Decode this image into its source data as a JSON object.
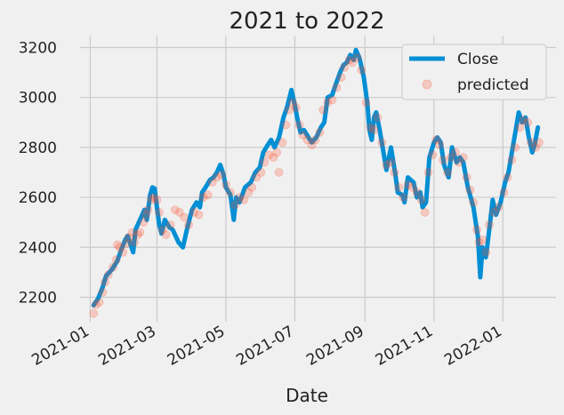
{
  "chart_data": {
    "type": "line",
    "title": "2021 to 2022",
    "xlabel": "Date",
    "ylabel": "",
    "x_ticks": [
      "2021-01",
      "2021-03",
      "2021-05",
      "2021-07",
      "2021-09",
      "2021-11",
      "2022-01"
    ],
    "y_ticks": [
      "2200",
      "2400",
      "2600",
      "2800",
      "3000",
      "3200"
    ],
    "xlim": [
      "2020-12-23",
      "2022-02-17"
    ],
    "ylim": [
      2102,
      3248
    ],
    "grid": true,
    "legend_position": "top-right",
    "series": [
      {
        "name": "Close",
        "kind": "line",
        "color": "#008fd5",
        "points": [
          [
            "2021-01-04",
            2168
          ],
          [
            "2021-01-08",
            2195
          ],
          [
            "2021-01-12",
            2240
          ],
          [
            "2021-01-15",
            2285
          ],
          [
            "2021-01-20",
            2310
          ],
          [
            "2021-01-25",
            2345
          ],
          [
            "2021-01-28",
            2385
          ],
          [
            "2021-02-01",
            2430
          ],
          [
            "2021-02-03",
            2445
          ],
          [
            "2021-02-05",
            2420
          ],
          [
            "2021-02-08",
            2380
          ],
          [
            "2021-02-10",
            2470
          ],
          [
            "2021-02-12",
            2490
          ],
          [
            "2021-02-16",
            2530
          ],
          [
            "2021-02-18",
            2550
          ],
          [
            "2021-02-20",
            2510
          ],
          [
            "2021-02-23",
            2610
          ],
          [
            "2021-02-25",
            2640
          ],
          [
            "2021-02-27",
            2635
          ],
          [
            "2021-03-01",
            2560
          ],
          [
            "2021-03-03",
            2490
          ],
          [
            "2021-03-05",
            2455
          ],
          [
            "2021-03-08",
            2510
          ],
          [
            "2021-03-12",
            2480
          ],
          [
            "2021-03-15",
            2470
          ],
          [
            "2021-03-20",
            2420
          ],
          [
            "2021-03-24",
            2400
          ],
          [
            "2021-03-28",
            2480
          ],
          [
            "2021-04-01",
            2550
          ],
          [
            "2021-04-05",
            2580
          ],
          [
            "2021-04-08",
            2560
          ],
          [
            "2021-04-10",
            2620
          ],
          [
            "2021-04-13",
            2640
          ],
          [
            "2021-04-17",
            2670
          ],
          [
            "2021-04-20",
            2680
          ],
          [
            "2021-04-23",
            2700
          ],
          [
            "2021-04-26",
            2730
          ],
          [
            "2021-04-29",
            2690
          ],
          [
            "2021-05-01",
            2640
          ],
          [
            "2021-05-05",
            2610
          ],
          [
            "2021-05-08",
            2510
          ],
          [
            "2021-05-10",
            2600
          ],
          [
            "2021-05-13",
            2580
          ],
          [
            "2021-05-18",
            2640
          ],
          [
            "2021-05-23",
            2660
          ],
          [
            "2021-05-27",
            2700
          ],
          [
            "2021-05-31",
            2720
          ],
          [
            "2021-06-03",
            2780
          ],
          [
            "2021-06-07",
            2810
          ],
          [
            "2021-06-10",
            2830
          ],
          [
            "2021-06-13",
            2800
          ],
          [
            "2021-06-17",
            2840
          ],
          [
            "2021-06-21",
            2920
          ],
          [
            "2021-06-24",
            2960
          ],
          [
            "2021-06-28",
            3030
          ],
          [
            "2021-07-01",
            2970
          ],
          [
            "2021-07-03",
            2920
          ],
          [
            "2021-07-06",
            2860
          ],
          [
            "2021-07-09",
            2870
          ],
          [
            "2021-07-13",
            2840
          ],
          [
            "2021-07-16",
            2820
          ],
          [
            "2021-07-20",
            2840
          ],
          [
            "2021-07-24",
            2880
          ],
          [
            "2021-07-27",
            2900
          ],
          [
            "2021-07-30",
            3000
          ],
          [
            "2021-08-03",
            3010
          ],
          [
            "2021-08-06",
            3050
          ],
          [
            "2021-08-10",
            3100
          ],
          [
            "2021-08-13",
            3130
          ],
          [
            "2021-08-16",
            3140
          ],
          [
            "2021-08-19",
            3170
          ],
          [
            "2021-08-22",
            3150
          ],
          [
            "2021-08-24",
            3190
          ],
          [
            "2021-08-27",
            3160
          ],
          [
            "2021-08-31",
            3080
          ],
          [
            "2021-09-03",
            2980
          ],
          [
            "2021-09-05",
            2870
          ],
          [
            "2021-09-07",
            2830
          ],
          [
            "2021-09-09",
            2920
          ],
          [
            "2021-09-11",
            2940
          ],
          [
            "2021-09-14",
            2870
          ],
          [
            "2021-09-17",
            2790
          ],
          [
            "2021-09-20",
            2710
          ],
          [
            "2021-09-24",
            2800
          ],
          [
            "2021-09-28",
            2690
          ],
          [
            "2021-09-30",
            2620
          ],
          [
            "2021-10-04",
            2610
          ],
          [
            "2021-10-06",
            2580
          ],
          [
            "2021-10-09",
            2680
          ],
          [
            "2021-10-14",
            2660
          ],
          [
            "2021-10-17",
            2600
          ],
          [
            "2021-10-20",
            2620
          ],
          [
            "2021-10-22",
            2560
          ],
          [
            "2021-10-25",
            2580
          ],
          [
            "2021-10-28",
            2760
          ],
          [
            "2021-11-01",
            2820
          ],
          [
            "2021-11-04",
            2840
          ],
          [
            "2021-11-07",
            2820
          ],
          [
            "2021-11-10",
            2730
          ],
          [
            "2021-11-14",
            2680
          ],
          [
            "2021-11-17",
            2800
          ],
          [
            "2021-11-21",
            2740
          ],
          [
            "2021-11-24",
            2760
          ],
          [
            "2021-11-27",
            2740
          ],
          [
            "2021-12-01",
            2640
          ],
          [
            "2021-12-03",
            2610
          ],
          [
            "2021-12-06",
            2560
          ],
          [
            "2021-12-08",
            2500
          ],
          [
            "2021-12-10",
            2440
          ],
          [
            "2021-12-12",
            2280
          ],
          [
            "2021-12-14",
            2400
          ],
          [
            "2021-12-17",
            2360
          ],
          [
            "2021-12-21",
            2510
          ],
          [
            "2021-12-23",
            2590
          ],
          [
            "2021-12-26",
            2530
          ],
          [
            "2021-12-30",
            2580
          ],
          [
            "2022-01-03",
            2660
          ],
          [
            "2022-01-06",
            2700
          ],
          [
            "2022-01-09",
            2780
          ],
          [
            "2022-01-12",
            2860
          ],
          [
            "2022-01-15",
            2940
          ],
          [
            "2022-01-18",
            2900
          ],
          [
            "2022-01-21",
            2920
          ],
          [
            "2022-01-24",
            2840
          ],
          [
            "2022-01-27",
            2780
          ],
          [
            "2022-01-29",
            2810
          ],
          [
            "2022-02-01",
            2880
          ]
        ]
      },
      {
        "name": "predicted",
        "kind": "scatter",
        "color": "#fc4f30",
        "points": [
          [
            "2021-01-04",
            2135
          ],
          [
            "2021-01-06",
            2170
          ],
          [
            "2021-01-09",
            2180
          ],
          [
            "2021-01-12",
            2220
          ],
          [
            "2021-01-14",
            2260
          ],
          [
            "2021-01-17",
            2290
          ],
          [
            "2021-01-21",
            2320
          ],
          [
            "2021-01-24",
            2350
          ],
          [
            "2021-01-25",
            2410
          ],
          [
            "2021-01-27",
            2400
          ],
          [
            "2021-01-30",
            2380
          ],
          [
            "2021-02-02",
            2415
          ],
          [
            "2021-02-04",
            2440
          ],
          [
            "2021-02-07",
            2460
          ],
          [
            "2021-02-09",
            2420
          ],
          [
            "2021-02-12",
            2450
          ],
          [
            "2021-02-14",
            2460
          ],
          [
            "2021-02-17",
            2500
          ],
          [
            "2021-02-19",
            2530
          ],
          [
            "2021-02-21",
            2550
          ],
          [
            "2021-02-24",
            2590
          ],
          [
            "2021-02-26",
            2600
          ],
          [
            "2021-03-01",
            2590
          ],
          [
            "2021-03-03",
            2540
          ],
          [
            "2021-03-06",
            2470
          ],
          [
            "2021-03-09",
            2450
          ],
          [
            "2021-03-13",
            2490
          ],
          [
            "2021-03-17",
            2550
          ],
          [
            "2021-03-21",
            2540
          ],
          [
            "2021-03-25",
            2520
          ],
          [
            "2021-03-29",
            2490
          ],
          [
            "2021-04-03",
            2540
          ],
          [
            "2021-04-07",
            2530
          ],
          [
            "2021-04-11",
            2600
          ],
          [
            "2021-04-15",
            2610
          ],
          [
            "2021-04-19",
            2660
          ],
          [
            "2021-04-23",
            2680
          ],
          [
            "2021-04-27",
            2690
          ],
          [
            "2021-05-01",
            2650
          ],
          [
            "2021-05-05",
            2620
          ],
          [
            "2021-05-09",
            2570
          ],
          [
            "2021-05-13",
            2600
          ],
          [
            "2021-05-17",
            2590
          ],
          [
            "2021-05-21",
            2620
          ],
          [
            "2021-05-24",
            2640
          ],
          [
            "2021-05-28",
            2680
          ],
          [
            "2021-06-01",
            2700
          ],
          [
            "2021-06-04",
            2740
          ],
          [
            "2021-06-08",
            2770
          ],
          [
            "2021-06-12",
            2760
          ],
          [
            "2021-06-15",
            2780
          ],
          [
            "2021-06-17",
            2700
          ],
          [
            "2021-06-20",
            2820
          ],
          [
            "2021-06-23",
            2890
          ],
          [
            "2021-06-26",
            2950
          ],
          [
            "2021-06-29",
            2980
          ],
          [
            "2021-07-02",
            2960
          ],
          [
            "2021-07-05",
            2890
          ],
          [
            "2021-07-08",
            2850
          ],
          [
            "2021-07-12",
            2830
          ],
          [
            "2021-07-16",
            2810
          ],
          [
            "2021-07-19",
            2830
          ],
          [
            "2021-07-23",
            2860
          ],
          [
            "2021-07-26",
            2950
          ],
          [
            "2021-07-30",
            2980
          ],
          [
            "2021-08-03",
            2990
          ],
          [
            "2021-08-07",
            3040
          ],
          [
            "2021-08-11",
            3080
          ],
          [
            "2021-08-14",
            3120
          ],
          [
            "2021-08-18",
            3150
          ],
          [
            "2021-08-21",
            3140
          ],
          [
            "2021-08-25",
            3160
          ],
          [
            "2021-08-29",
            3110
          ],
          [
            "2021-09-02",
            2980
          ],
          [
            "2021-09-06",
            2880
          ],
          [
            "2021-09-09",
            2870
          ],
          [
            "2021-09-12",
            2920
          ],
          [
            "2021-09-16",
            2820
          ],
          [
            "2021-09-20",
            2730
          ],
          [
            "2021-09-24",
            2740
          ],
          [
            "2021-09-27",
            2700
          ],
          [
            "2021-10-01",
            2640
          ],
          [
            "2021-10-05",
            2600
          ],
          [
            "2021-10-09",
            2650
          ],
          [
            "2021-10-13",
            2640
          ],
          [
            "2021-10-17",
            2620
          ],
          [
            "2021-10-21",
            2590
          ],
          [
            "2021-10-24",
            2540
          ],
          [
            "2021-10-27",
            2700
          ],
          [
            "2021-10-31",
            2770
          ],
          [
            "2021-11-03",
            2830
          ],
          [
            "2021-11-06",
            2810
          ],
          [
            "2021-11-09",
            2750
          ],
          [
            "2021-11-13",
            2700
          ],
          [
            "2021-11-16",
            2760
          ],
          [
            "2021-11-20",
            2780
          ],
          [
            "2021-11-23",
            2740
          ],
          [
            "2021-11-27",
            2760
          ],
          [
            "2021-11-30",
            2680
          ],
          [
            "2021-12-03",
            2630
          ],
          [
            "2021-12-06",
            2580
          ],
          [
            "2021-12-09",
            2470
          ],
          [
            "2021-12-11",
            2420
          ],
          [
            "2021-12-14",
            2430
          ],
          [
            "2021-12-17",
            2380
          ],
          [
            "2021-12-20",
            2490
          ],
          [
            "2021-12-24",
            2540
          ],
          [
            "2021-12-28",
            2560
          ],
          [
            "2022-01-02",
            2620
          ],
          [
            "2022-01-05",
            2680
          ],
          [
            "2022-01-09",
            2750
          ],
          [
            "2022-01-12",
            2800
          ],
          [
            "2022-01-16",
            2880
          ],
          [
            "2022-01-19",
            2910
          ],
          [
            "2022-01-23",
            2900
          ],
          [
            "2022-01-26",
            2820
          ],
          [
            "2022-01-30",
            2800
          ],
          [
            "2022-02-02",
            2820
          ]
        ]
      }
    ]
  }
}
